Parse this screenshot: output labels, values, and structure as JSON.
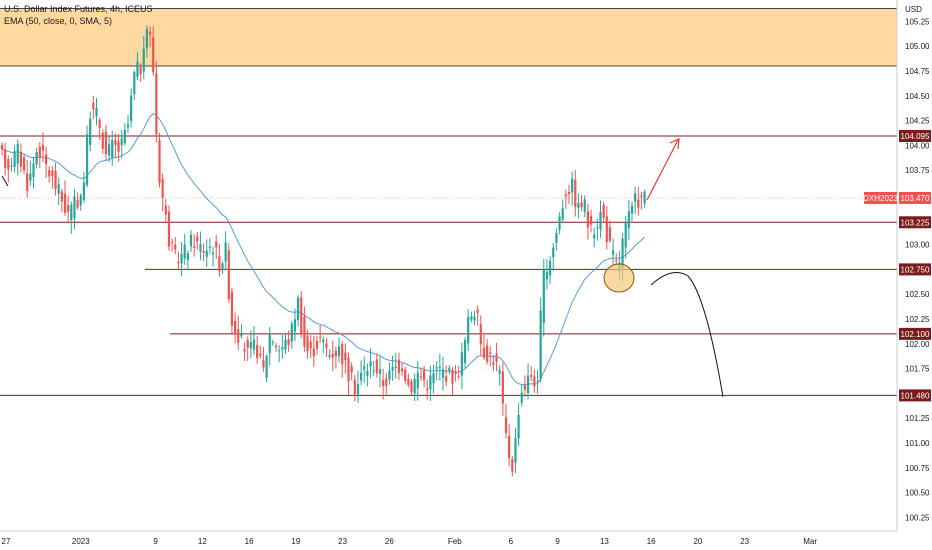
{
  "chart_data": {
    "type": "candlestick",
    "legend": {
      "symbol": "U.S. Dollar Index Futures, 4h, ICEUS",
      "indicator": "EMA (50, close, 0, SMA, 5)"
    },
    "y_axis": {
      "unit": "USD",
      "range": [
        100.2,
        105.45
      ],
      "ticks": [
        "105.25",
        "105.00",
        "104.75",
        "104.50",
        "104.25",
        "104.00",
        "103.75",
        "103.50",
        "103.25",
        "103.00",
        "102.75",
        "102.50",
        "102.25",
        "102.00",
        "101.75",
        "101.50",
        "101.25",
        "101.00",
        "100.75",
        "100.50",
        "100.25"
      ]
    },
    "x_axis": {
      "ticks": [
        {
          "label": "27",
          "pos": 0.0
        },
        {
          "label": "2023",
          "pos": 0.8
        },
        {
          "label": "9",
          "pos": 1.6
        },
        {
          "label": "12",
          "pos": 2.1
        },
        {
          "label": "16",
          "pos": 2.6
        },
        {
          "label": "19",
          "pos": 3.1
        },
        {
          "label": "23",
          "pos": 3.6
        },
        {
          "label": "26",
          "pos": 4.1
        },
        {
          "label": "Feb",
          "pos": 4.8
        },
        {
          "label": "6",
          "pos": 5.4
        },
        {
          "label": "9",
          "pos": 5.9
        },
        {
          "label": "13",
          "pos": 6.4
        },
        {
          "label": "16",
          "pos": 6.9
        },
        {
          "label": "20",
          "pos": 7.4
        },
        {
          "label": "23",
          "pos": 7.9
        },
        {
          "label": "Mar",
          "pos": 8.6
        }
      ]
    },
    "resistance_zone": {
      "from": 104.8,
      "to": 105.38,
      "color": "#ffcc80"
    },
    "levels": [
      {
        "price": 104.095,
        "label": "104.095"
      },
      {
        "price": 103.225,
        "label": "103.225"
      },
      {
        "price": 102.75,
        "label": "102.750"
      },
      {
        "price": 102.1,
        "label": "102.100"
      },
      {
        "price": 101.48,
        "label": "101.480"
      }
    ],
    "current_price": {
      "symbol": "DXH2023",
      "price": 103.47,
      "label": "103.470"
    },
    "colors": {
      "up": "#26a69a",
      "down": "#ef5350",
      "ema": "#5b9bd5",
      "level": "#7b1c1c",
      "zone_border": "#444444",
      "arrow": "#e53935"
    }
  }
}
